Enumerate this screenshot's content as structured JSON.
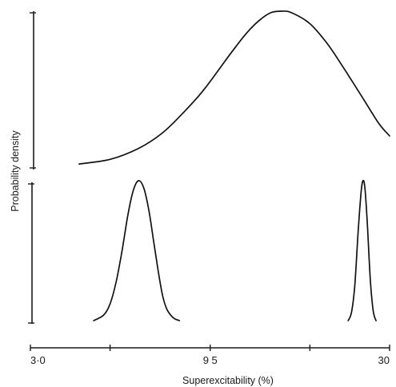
{
  "chart_data": {
    "type": "line",
    "title": "",
    "xlabel": "Superexcitability (%)",
    "ylabel": "Probability density",
    "x_scale": "log",
    "xlim": [
      3.0,
      30
    ],
    "x_ticks": [
      {
        "value": 3.0,
        "label": "3·0"
      },
      {
        "value": 5.0,
        "label": ""
      },
      {
        "value": 9.5,
        "label": "9 5"
      },
      {
        "value": 18.0,
        "label": ""
      },
      {
        "value": 30,
        "label": "30"
      }
    ],
    "grid": false,
    "legend": "none",
    "panels": [
      {
        "id": "top",
        "series": [
          {
            "x": [
              4.1,
              5.0,
              6.0,
              7.0,
              8.0,
              9.0,
              10.0,
              11.0,
              12.0,
              13.0,
              14.0,
              15.0,
              16.0,
              18.0,
              20.0,
              22.0,
              25.0,
              28.0,
              30.0
            ],
            "y": [
              0.02,
              0.05,
              0.12,
              0.22,
              0.35,
              0.48,
              0.62,
              0.75,
              0.86,
              0.94,
              0.99,
              1.0,
              0.99,
              0.92,
              0.8,
              0.66,
              0.46,
              0.28,
              0.2
            ]
          }
        ]
      },
      {
        "id": "bottom",
        "series": [
          {
            "x": [
              4.5,
              4.8,
              5.0,
              5.2,
              5.4,
              5.6,
              5.8,
              6.0,
              6.2,
              6.4,
              6.6,
              6.8,
              7.0,
              7.2,
              7.5,
              7.8
            ],
            "y": [
              0.0,
              0.04,
              0.12,
              0.28,
              0.5,
              0.75,
              0.93,
              1.0,
              0.95,
              0.8,
              0.58,
              0.36,
              0.18,
              0.08,
              0.02,
              0.0
            ]
          },
          {
            "x": [
              23.0,
              23.5,
              24.0,
              24.5,
              25.0,
              25.3,
              25.6,
              26.0,
              26.5,
              27.0,
              27.5
            ],
            "y": [
              0.0,
              0.06,
              0.25,
              0.62,
              0.92,
              1.0,
              0.95,
              0.7,
              0.3,
              0.07,
              0.0
            ]
          }
        ]
      }
    ]
  }
}
